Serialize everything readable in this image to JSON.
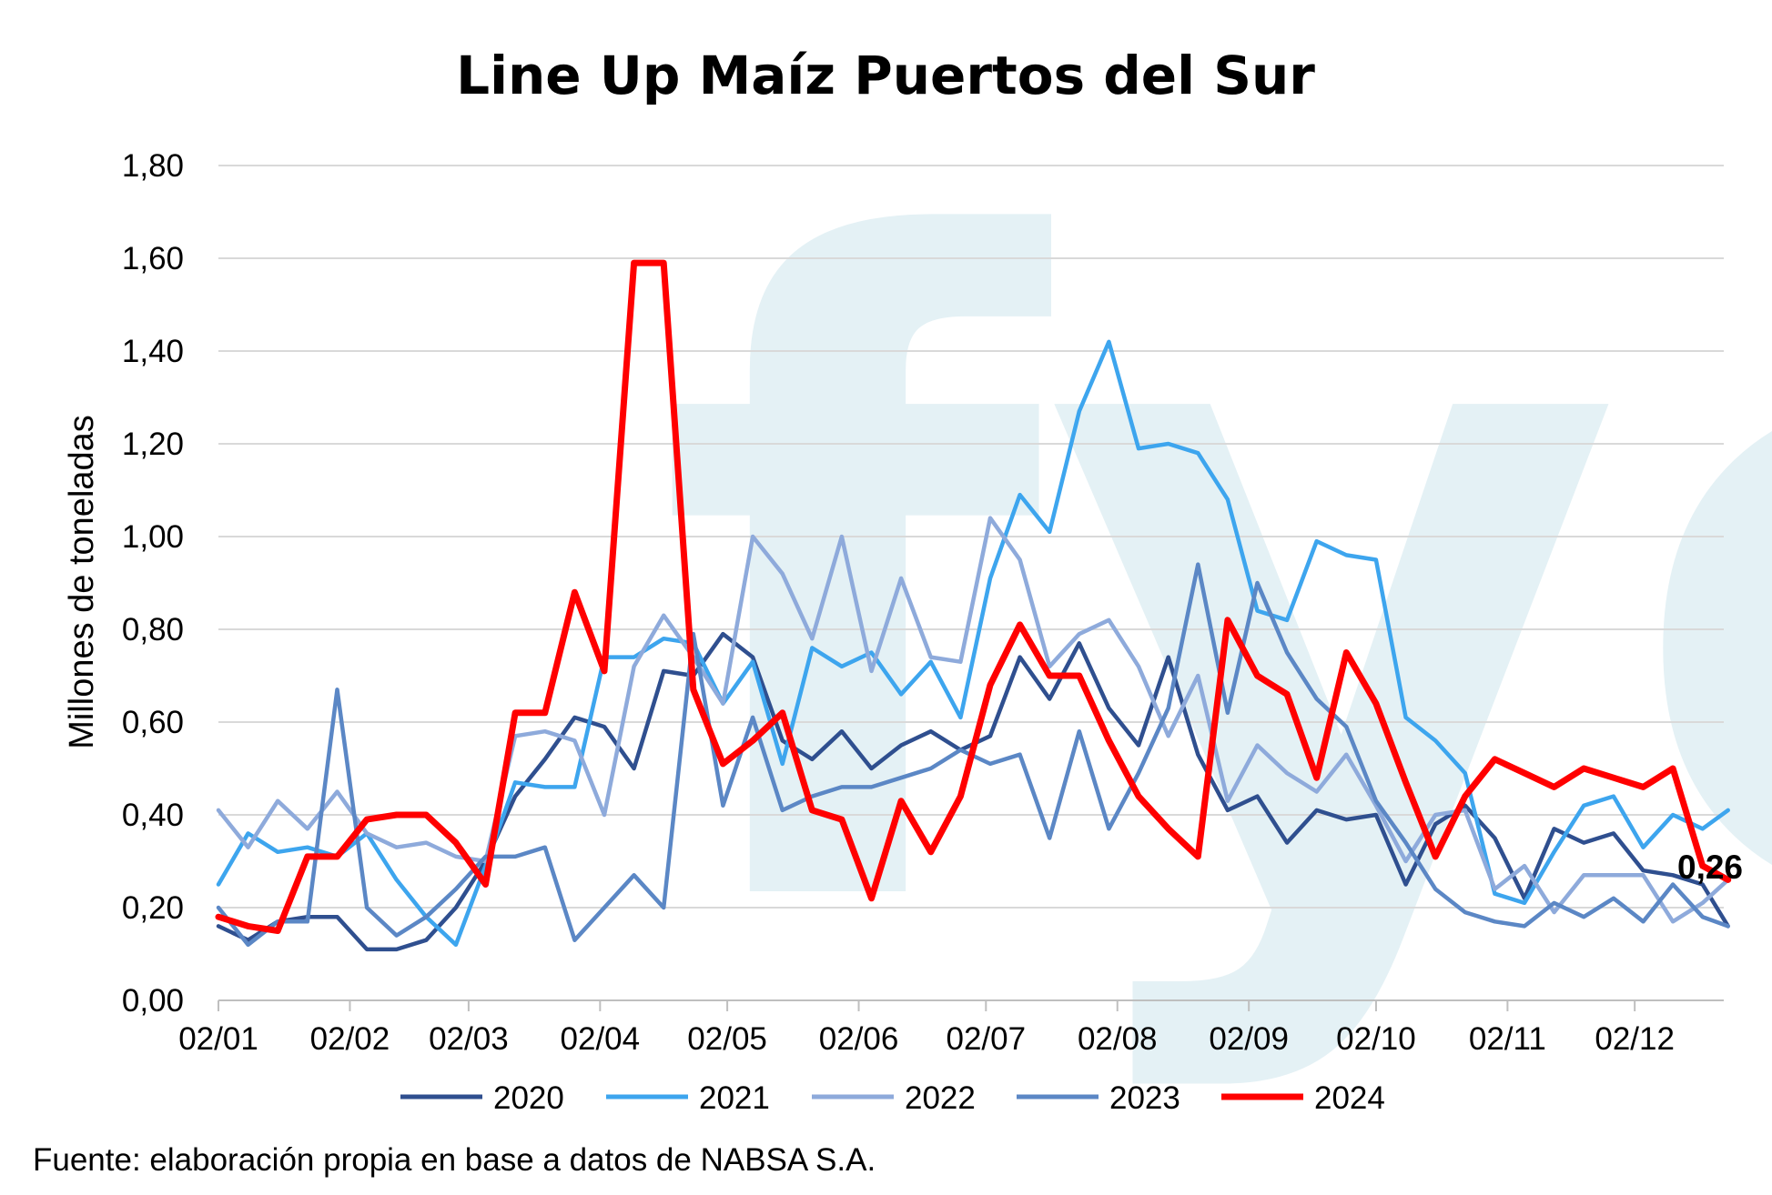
{
  "chart_data": {
    "type": "line",
    "title": "Line Up Maíz Puertos del Sur",
    "ylabel": "Millones de toneladas",
    "xlabel": "",
    "ylim": [
      0,
      1.8
    ],
    "y_ticks": [
      "0,00",
      "0,20",
      "0,40",
      "0,60",
      "0,80",
      "1,00",
      "1,20",
      "1,40",
      "1,60",
      "1,80"
    ],
    "x_tick_labels": [
      "02/01",
      "02/02",
      "02/03",
      "02/04",
      "02/05",
      "02/06",
      "02/07",
      "02/08",
      "02/09",
      "02/10",
      "02/11",
      "02/12"
    ],
    "x_ticks": [
      0,
      31,
      59,
      90,
      120,
      151,
      181,
      212,
      243,
      273,
      304,
      334
    ],
    "x_max": 355,
    "grid": true,
    "legend_position": "bottom",
    "source": "Fuente: elaboración propia en base a datos de NABSA S.A.",
    "end_label": "0,26",
    "watermark": "fyo",
    "series": [
      {
        "name": "2020",
        "color": "#2F4F8F",
        "points": [
          [
            0,
            0.16
          ],
          [
            7,
            0.13
          ],
          [
            14,
            0.17
          ],
          [
            21,
            0.18
          ],
          [
            28,
            0.18
          ],
          [
            35,
            0.11
          ],
          [
            42,
            0.11
          ],
          [
            49,
            0.13
          ],
          [
            56,
            0.2
          ],
          [
            63,
            0.3
          ],
          [
            70,
            0.44
          ],
          [
            77,
            0.52
          ],
          [
            84,
            0.61
          ],
          [
            91,
            0.59
          ],
          [
            98,
            0.5
          ],
          [
            105,
            0.71
          ],
          [
            112,
            0.7
          ],
          [
            119,
            0.79
          ],
          [
            126,
            0.74
          ],
          [
            133,
            0.56
          ],
          [
            140,
            0.52
          ],
          [
            147,
            0.58
          ],
          [
            154,
            0.5
          ],
          [
            161,
            0.55
          ],
          [
            168,
            0.58
          ],
          [
            175,
            0.54
          ],
          [
            182,
            0.57
          ],
          [
            189,
            0.74
          ],
          [
            196,
            0.65
          ],
          [
            203,
            0.77
          ],
          [
            210,
            0.63
          ],
          [
            217,
            0.55
          ],
          [
            224,
            0.74
          ],
          [
            231,
            0.53
          ],
          [
            238,
            0.41
          ],
          [
            245,
            0.44
          ],
          [
            252,
            0.34
          ],
          [
            259,
            0.41
          ],
          [
            266,
            0.39
          ],
          [
            273,
            0.4
          ],
          [
            280,
            0.25
          ],
          [
            287,
            0.38
          ],
          [
            294,
            0.42
          ],
          [
            301,
            0.35
          ],
          [
            308,
            0.22
          ],
          [
            315,
            0.37
          ],
          [
            322,
            0.34
          ],
          [
            329,
            0.36
          ],
          [
            336,
            0.28
          ],
          [
            343,
            0.27
          ],
          [
            350,
            0.25
          ],
          [
            356,
            0.16
          ]
        ]
      },
      {
        "name": "2021",
        "color": "#3DA5EE",
        "points": [
          [
            0,
            0.25
          ],
          [
            7,
            0.36
          ],
          [
            14,
            0.32
          ],
          [
            21,
            0.33
          ],
          [
            28,
            0.31
          ],
          [
            35,
            0.36
          ],
          [
            42,
            0.26
          ],
          [
            49,
            0.18
          ],
          [
            56,
            0.12
          ],
          [
            63,
            0.29
          ],
          [
            70,
            0.47
          ],
          [
            77,
            0.46
          ],
          [
            84,
            0.46
          ],
          [
            91,
            0.74
          ],
          [
            98,
            0.74
          ],
          [
            105,
            0.78
          ],
          [
            112,
            0.77
          ],
          [
            119,
            0.64
          ],
          [
            126,
            0.73
          ],
          [
            133,
            0.51
          ],
          [
            140,
            0.76
          ],
          [
            147,
            0.72
          ],
          [
            154,
            0.75
          ],
          [
            161,
            0.66
          ],
          [
            168,
            0.73
          ],
          [
            175,
            0.61
          ],
          [
            182,
            0.91
          ],
          [
            189,
            1.09
          ],
          [
            196,
            1.01
          ],
          [
            203,
            1.27
          ],
          [
            210,
            1.42
          ],
          [
            217,
            1.19
          ],
          [
            224,
            1.2
          ],
          [
            231,
            1.18
          ],
          [
            238,
            1.08
          ],
          [
            245,
            0.84
          ],
          [
            252,
            0.82
          ],
          [
            259,
            0.99
          ],
          [
            266,
            0.96
          ],
          [
            273,
            0.95
          ],
          [
            280,
            0.61
          ],
          [
            287,
            0.56
          ],
          [
            294,
            0.49
          ],
          [
            301,
            0.23
          ],
          [
            308,
            0.21
          ],
          [
            315,
            0.32
          ],
          [
            322,
            0.42
          ],
          [
            329,
            0.44
          ],
          [
            336,
            0.33
          ],
          [
            343,
            0.4
          ],
          [
            350,
            0.37
          ],
          [
            356,
            0.41
          ]
        ]
      },
      {
        "name": "2022",
        "color": "#8EAADB",
        "points": [
          [
            0,
            0.41
          ],
          [
            7,
            0.33
          ],
          [
            14,
            0.43
          ],
          [
            21,
            0.37
          ],
          [
            28,
            0.45
          ],
          [
            35,
            0.36
          ],
          [
            42,
            0.33
          ],
          [
            49,
            0.34
          ],
          [
            56,
            0.31
          ],
          [
            63,
            0.3
          ],
          [
            70,
            0.57
          ],
          [
            77,
            0.58
          ],
          [
            84,
            0.56
          ],
          [
            91,
            0.4
          ],
          [
            98,
            0.72
          ],
          [
            105,
            0.83
          ],
          [
            112,
            0.74
          ],
          [
            119,
            0.64
          ],
          [
            126,
            1.0
          ],
          [
            133,
            0.92
          ],
          [
            140,
            0.78
          ],
          [
            147,
            1.0
          ],
          [
            154,
            0.71
          ],
          [
            161,
            0.91
          ],
          [
            168,
            0.74
          ],
          [
            175,
            0.73
          ],
          [
            182,
            1.04
          ],
          [
            189,
            0.95
          ],
          [
            196,
            0.72
          ],
          [
            203,
            0.79
          ],
          [
            210,
            0.82
          ],
          [
            217,
            0.72
          ],
          [
            224,
            0.57
          ],
          [
            231,
            0.7
          ],
          [
            238,
            0.43
          ],
          [
            245,
            0.55
          ],
          [
            252,
            0.49
          ],
          [
            259,
            0.45
          ],
          [
            266,
            0.53
          ],
          [
            273,
            0.42
          ],
          [
            280,
            0.3
          ],
          [
            287,
            0.4
          ],
          [
            294,
            0.41
          ],
          [
            301,
            0.24
          ],
          [
            308,
            0.29
          ],
          [
            315,
            0.19
          ],
          [
            322,
            0.27
          ],
          [
            329,
            0.27
          ],
          [
            336,
            0.27
          ],
          [
            343,
            0.17
          ],
          [
            350,
            0.21
          ],
          [
            356,
            0.26
          ]
        ]
      },
      {
        "name": "2023",
        "color": "#5B87C5",
        "points": [
          [
            0,
            0.2
          ],
          [
            7,
            0.12
          ],
          [
            14,
            0.17
          ],
          [
            21,
            0.17
          ],
          [
            28,
            0.67
          ],
          [
            35,
            0.2
          ],
          [
            42,
            0.14
          ],
          [
            49,
            0.18
          ],
          [
            56,
            0.24
          ],
          [
            63,
            0.31
          ],
          [
            70,
            0.31
          ],
          [
            77,
            0.33
          ],
          [
            84,
            0.13
          ],
          [
            91,
            0.2
          ],
          [
            98,
            0.27
          ],
          [
            105,
            0.2
          ],
          [
            112,
            0.79
          ],
          [
            119,
            0.42
          ],
          [
            126,
            0.61
          ],
          [
            133,
            0.41
          ],
          [
            140,
            0.44
          ],
          [
            147,
            0.46
          ],
          [
            154,
            0.46
          ],
          [
            161,
            0.48
          ],
          [
            168,
            0.5
          ],
          [
            175,
            0.54
          ],
          [
            182,
            0.51
          ],
          [
            189,
            0.53
          ],
          [
            196,
            0.35
          ],
          [
            203,
            0.58
          ],
          [
            210,
            0.37
          ],
          [
            217,
            0.49
          ],
          [
            224,
            0.63
          ],
          [
            231,
            0.94
          ],
          [
            238,
            0.62
          ],
          [
            245,
            0.9
          ],
          [
            252,
            0.75
          ],
          [
            259,
            0.65
          ],
          [
            266,
            0.59
          ],
          [
            273,
            0.43
          ],
          [
            280,
            0.34
          ],
          [
            287,
            0.24
          ],
          [
            294,
            0.19
          ],
          [
            301,
            0.17
          ],
          [
            308,
            0.16
          ],
          [
            315,
            0.21
          ],
          [
            322,
            0.18
          ],
          [
            329,
            0.22
          ],
          [
            336,
            0.17
          ],
          [
            343,
            0.25
          ],
          [
            350,
            0.18
          ],
          [
            356,
            0.16
          ]
        ]
      },
      {
        "name": "2024",
        "color": "#FF0000",
        "points": [
          [
            0,
            0.18
          ],
          [
            7,
            0.16
          ],
          [
            14,
            0.15
          ],
          [
            21,
            0.31
          ],
          [
            28,
            0.31
          ],
          [
            35,
            0.39
          ],
          [
            42,
            0.4
          ],
          [
            49,
            0.4
          ],
          [
            56,
            0.34
          ],
          [
            63,
            0.25
          ],
          [
            70,
            0.62
          ],
          [
            77,
            0.62
          ],
          [
            84,
            0.88
          ],
          [
            91,
            0.71
          ],
          [
            98,
            1.59
          ],
          [
            105,
            1.59
          ],
          [
            112,
            0.67
          ],
          [
            119,
            0.51
          ],
          [
            126,
            0.56
          ],
          [
            133,
            0.62
          ],
          [
            140,
            0.41
          ],
          [
            147,
            0.39
          ],
          [
            154,
            0.22
          ],
          [
            161,
            0.43
          ],
          [
            168,
            0.32
          ],
          [
            175,
            0.44
          ],
          [
            182,
            0.68
          ],
          [
            189,
            0.81
          ],
          [
            196,
            0.7
          ],
          [
            203,
            0.7
          ],
          [
            210,
            0.56
          ],
          [
            217,
            0.44
          ],
          [
            224,
            0.37
          ],
          [
            231,
            0.31
          ],
          [
            238,
            0.82
          ],
          [
            245,
            0.7
          ],
          [
            252,
            0.66
          ],
          [
            259,
            0.48
          ],
          [
            266,
            0.75
          ],
          [
            273,
            0.64
          ],
          [
            280,
            0.47
          ],
          [
            287,
            0.31
          ],
          [
            294,
            0.44
          ],
          [
            301,
            0.52
          ],
          [
            308,
            0.49
          ],
          [
            315,
            0.46
          ],
          [
            322,
            0.5
          ],
          [
            329,
            0.48
          ],
          [
            336,
            0.46
          ],
          [
            343,
            0.5
          ],
          [
            350,
            0.29
          ],
          [
            356,
            0.26
          ]
        ]
      }
    ]
  }
}
